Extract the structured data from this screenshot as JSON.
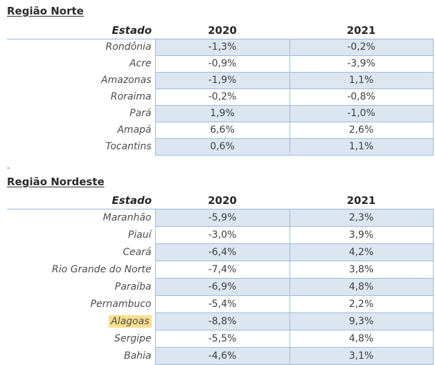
{
  "separator": {
    "label": "-"
  },
  "colors": {
    "cell_fill": "#dce6f1",
    "cell_border": "#9cb9da",
    "header_rule": "#95b3d7",
    "highlight": "#fbdf8d",
    "title_text": "#2b2b2b",
    "header_text": "#262626",
    "state_text": "#4d4d4d",
    "value_text": "#3d3d3d"
  },
  "tables": [
    {
      "title": "Região Norte",
      "columns": [
        "Estado",
        "2020",
        "2021"
      ],
      "rows": [
        {
          "estado": "Rondônia",
          "v2020": "-1,3%",
          "v2021": "-0,2%",
          "highlight": false
        },
        {
          "estado": "Acre",
          "v2020": "-0,9%",
          "v2021": "-3,9%",
          "highlight": false
        },
        {
          "estado": "Amazonas",
          "v2020": "-1,9%",
          "v2021": "1,1%",
          "highlight": false
        },
        {
          "estado": "Roraima",
          "v2020": "-0,2%",
          "v2021": "-0,8%",
          "highlight": false
        },
        {
          "estado": "Pará",
          "v2020": "1,9%",
          "v2021": "-1,0%",
          "highlight": false
        },
        {
          "estado": "Amapá",
          "v2020": "6,6%",
          "v2021": "2,6%",
          "highlight": false
        },
        {
          "estado": "Tocantins",
          "v2020": "0,6%",
          "v2021": "1,1%",
          "highlight": false
        }
      ]
    },
    {
      "title": "Região Nordeste",
      "columns": [
        "Estado",
        "2020",
        "2021"
      ],
      "rows": [
        {
          "estado": "Maranhão",
          "v2020": "-5,9%",
          "v2021": "2,3%",
          "highlight": false
        },
        {
          "estado": "Piauí",
          "v2020": "-3,0%",
          "v2021": "3,9%",
          "highlight": false
        },
        {
          "estado": "Ceará",
          "v2020": "-6,4%",
          "v2021": "4,2%",
          "highlight": false
        },
        {
          "estado": "Rio Grande do Norte",
          "v2020": "-7,4%",
          "v2021": "3,8%",
          "highlight": false
        },
        {
          "estado": "Paraíba",
          "v2020": "-6,9%",
          "v2021": "4,8%",
          "highlight": false
        },
        {
          "estado": "Pernambuco",
          "v2020": "-5,4%",
          "v2021": "2,2%",
          "highlight": false
        },
        {
          "estado": "Alagoas",
          "v2020": "-8,8%",
          "v2021": "9,3%",
          "highlight": true
        },
        {
          "estado": "Sergipe",
          "v2020": "-5,5%",
          "v2021": "4,8%",
          "highlight": false
        },
        {
          "estado": "Bahia",
          "v2020": "-4,6%",
          "v2021": "3,1%",
          "highlight": false
        }
      ]
    }
  ]
}
